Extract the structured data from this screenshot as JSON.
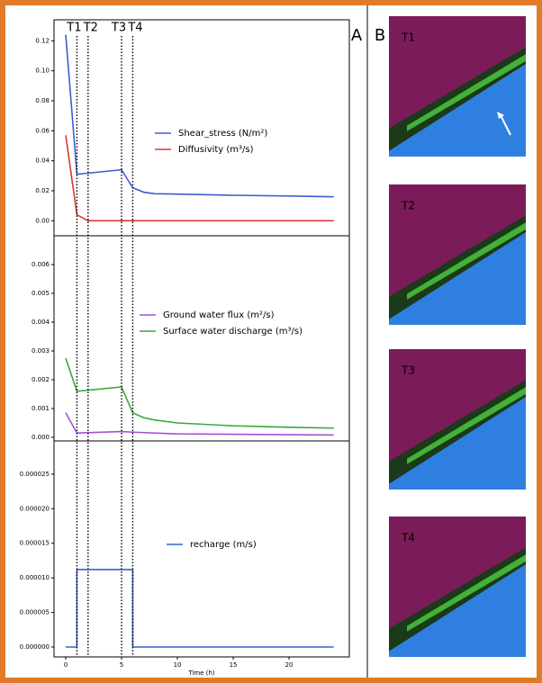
{
  "panel_a_label": "A",
  "panel_b_label": "B",
  "time_markers": [
    {
      "x": 1,
      "label": "T1"
    },
    {
      "x": 2,
      "label": "T2"
    },
    {
      "x": 5,
      "label": "T3"
    },
    {
      "x": 6,
      "label": "T4"
    }
  ],
  "images": [
    {
      "label": "T1"
    },
    {
      "label": "T2"
    },
    {
      "label": "T3"
    },
    {
      "label": "T4"
    }
  ],
  "chart_data": [
    {
      "type": "line",
      "xlim": [
        -1.05,
        25.4
      ],
      "ylim": [
        -0.01,
        0.134
      ],
      "yticks": [
        {
          "value": 0,
          "label": "0.00"
        },
        0.02,
        0.04,
        0.06,
        0.08,
        {
          "value": 0.1,
          "label": "0.10"
        },
        0.12
      ],
      "series": [
        {
          "name": "Shear_stress (N/m²)",
          "color": "#3a5fd0",
          "x": [
            0,
            1,
            5,
            6,
            7,
            8,
            10,
            15,
            20,
            24
          ],
          "values": [
            0.124,
            0.031,
            0.034,
            0.022,
            0.019,
            0.018,
            0.0178,
            0.017,
            0.0165,
            0.016
          ]
        },
        {
          "name": "Diffusivity (m³/s)",
          "color": "#d63a2f",
          "x": [
            0,
            1,
            2,
            24
          ],
          "values": [
            0.057,
            0.004,
            0,
            0
          ]
        }
      ]
    },
    {
      "type": "line",
      "xlim": [
        -1.05,
        25.4
      ],
      "ylim": [
        -0.000125,
        0.007
      ],
      "yticks": [
        {
          "value": 0,
          "label": "0.000"
        },
        0.001,
        0.002,
        0.003,
        0.004,
        0.005,
        0.006
      ],
      "series": [
        {
          "name": "Ground water flux (m²/s)",
          "color": "#a64fd6",
          "x": [
            0,
            1,
            5,
            6,
            10,
            24
          ],
          "values": [
            0.00085,
            0.00015,
            0.0002,
            0.00018,
            0.00012,
            8e-05
          ]
        },
        {
          "name": "Surface water discharge (m³/s)",
          "color": "#3aa83a",
          "x": [
            0,
            1,
            5,
            6,
            7,
            8,
            10,
            15,
            20,
            24
          ],
          "values": [
            0.00275,
            0.0016,
            0.00175,
            0.00085,
            0.00068,
            0.0006,
            0.0005,
            0.0004,
            0.00035,
            0.00032
          ]
        }
      ]
    },
    {
      "type": "line",
      "xlim": [
        -1.05,
        25.4
      ],
      "ylim": [
        -1.43e-06,
        2.98e-05
      ],
      "yticks": [
        {
          "value": 0,
          "label": "0.000000"
        },
        5e-06,
        {
          "value": 1e-05,
          "label": "0.000010"
        },
        1.5e-05,
        {
          "value": 2e-05,
          "label": "0.000020"
        },
        2.5e-05
      ],
      "xticks": [
        0,
        5,
        10,
        15,
        20
      ],
      "xlabel": "Time (h)",
      "series": [
        {
          "name": "recharge (m/s)",
          "color": "#3a5fd0",
          "x": [
            0,
            1,
            1,
            6,
            6,
            24
          ],
          "values": [
            0,
            0,
            1.12e-05,
            1.12e-05,
            0,
            0
          ]
        }
      ]
    }
  ]
}
